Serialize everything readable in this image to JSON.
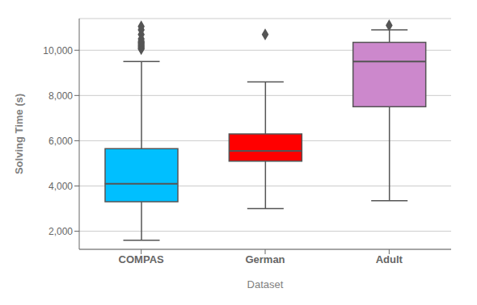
{
  "chart_data": {
    "type": "box",
    "xlabel": "Dataset",
    "ylabel": "Solving Time (s)",
    "categories": [
      "COMPAS",
      "German",
      "Adult"
    ],
    "stats": [
      {
        "med": 4100,
        "q1": 3300,
        "q3": 5650,
        "whislo": 1600,
        "whishi": 9500,
        "fliers": [
          10050,
          10100,
          10150,
          10200,
          10250,
          10300,
          10350,
          10400,
          10500,
          10700,
          10900,
          11050
        ]
      },
      {
        "med": 5550,
        "q1": 5100,
        "q3": 6300,
        "whislo": 3000,
        "whishi": 8600,
        "fliers": [
          10700
        ]
      },
      {
        "med": 9500,
        "q1": 7500,
        "q3": 10350,
        "whislo": 3350,
        "whishi": 10900,
        "fliers": [
          11100
        ]
      }
    ],
    "colors": [
      "#00BFFF",
      "#FF0000",
      "#CC88CC"
    ],
    "marker": "diamond",
    "ylim": [
      1200,
      11400
    ],
    "yticks": [
      {
        "value": 2000,
        "label": "2,000"
      },
      {
        "value": 4000,
        "label": "4,000"
      },
      {
        "value": 6000,
        "label": "6,000"
      },
      {
        "value": 8000,
        "label": "8,000"
      },
      {
        "value": 10000,
        "label": "10,000"
      }
    ],
    "grid": true
  }
}
